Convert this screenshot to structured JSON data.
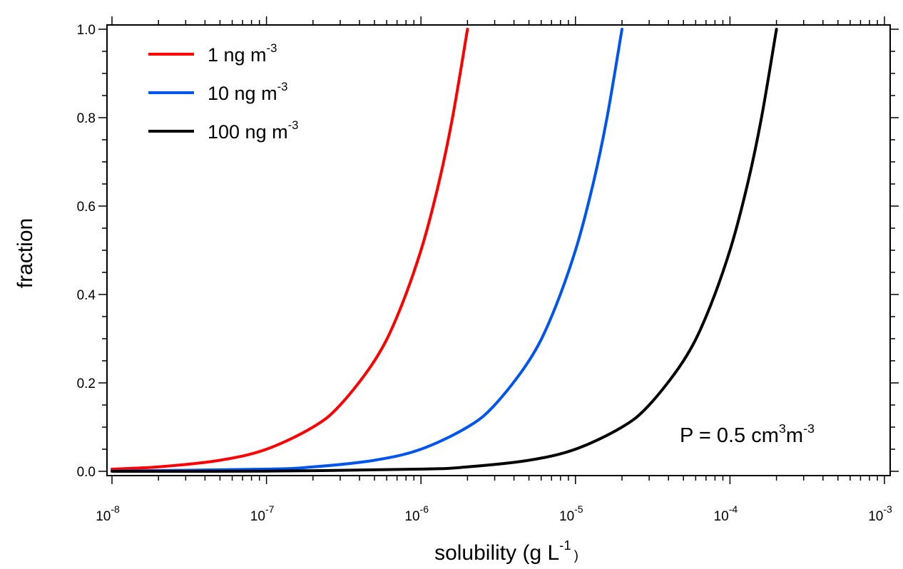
{
  "chart_data": {
    "type": "line",
    "title": "",
    "xscale": "log",
    "xlabel": "solubility (g L",
    "xlabel_sup": "-1",
    "xlabel_suffix": ")",
    "ylabel": "fraction",
    "xlim": [
      1e-08,
      0.001
    ],
    "ylim": [
      0.0,
      1.0
    ],
    "x_ticks": [
      {
        "base": "10",
        "exp": "-8",
        "value": 1e-08
      },
      {
        "base": "10",
        "exp": "-7",
        "value": 1e-07
      },
      {
        "base": "10",
        "exp": "-6",
        "value": 1e-06
      },
      {
        "base": "10",
        "exp": "-5",
        "value": 1e-05
      },
      {
        "base": "10",
        "exp": "-4",
        "value": 0.0001
      },
      {
        "base": "10",
        "exp": "-3",
        "value": 0.001
      }
    ],
    "y_ticks": [
      "0.0",
      "0.2",
      "0.4",
      "0.6",
      "0.8",
      "1.0"
    ],
    "grid": false,
    "legend_position": "top-left",
    "series": [
      {
        "name": "1 ng m",
        "name_sup": "-3",
        "color": "#ff0000",
        "x": [
          1e-08,
          2e-08,
          5e-08,
          1e-07,
          2e-07,
          3e-07,
          5e-07,
          7e-07,
          1e-06,
          1.3e-06,
          1.6e-06,
          2e-06
        ],
        "y": [
          0.005,
          0.01,
          0.025,
          0.05,
          0.1,
          0.15,
          0.25,
          0.35,
          0.5,
          0.65,
          0.8,
          1.0
        ]
      },
      {
        "name": "10 ng m",
        "name_sup": "-3",
        "color": "#0055ee",
        "x": [
          1e-08,
          1e-07,
          2e-07,
          5e-07,
          1e-06,
          2e-06,
          3e-06,
          5e-06,
          7e-06,
          1e-05,
          1.3e-05,
          1.6e-05,
          2e-05
        ],
        "y": [
          0.0005,
          0.005,
          0.01,
          0.025,
          0.05,
          0.1,
          0.15,
          0.25,
          0.35,
          0.5,
          0.65,
          0.8,
          1.0
        ]
      },
      {
        "name": "100 ng m",
        "name_sup": "-3",
        "color": "#000000",
        "x": [
          1e-08,
          1e-07,
          1e-06,
          2e-06,
          5e-06,
          1e-05,
          2e-05,
          3e-05,
          5e-05,
          7e-05,
          0.0001,
          0.00013,
          0.00016,
          0.0002
        ],
        "y": [
          5e-05,
          0.0005,
          0.005,
          0.01,
          0.025,
          0.05,
          0.1,
          0.15,
          0.25,
          0.35,
          0.5,
          0.65,
          0.8,
          1.0
        ]
      }
    ],
    "annotation": {
      "text": "P = 0.5 cm",
      "sup1": "3",
      "mid": "m",
      "sup2": "-3"
    }
  }
}
